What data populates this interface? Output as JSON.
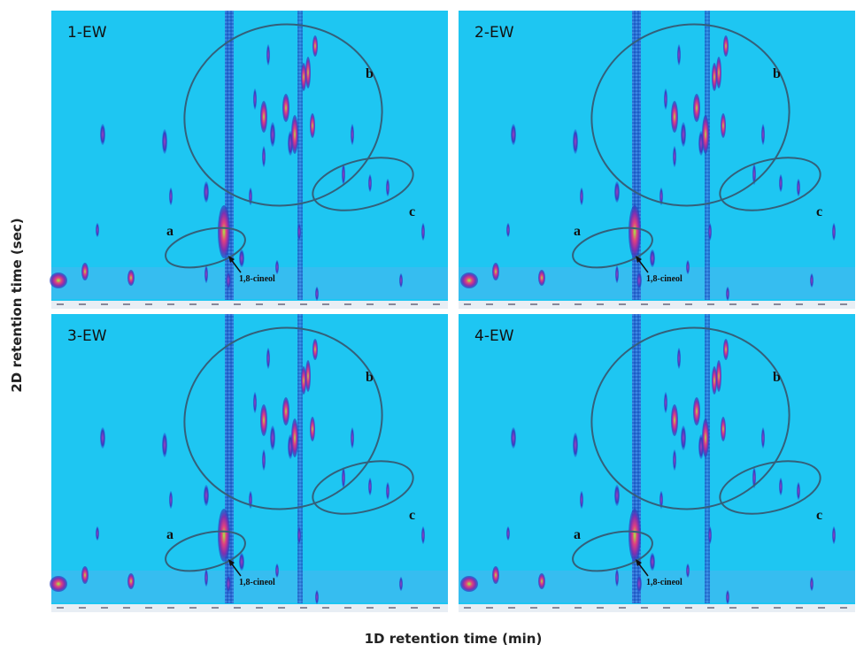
{
  "y_axis_label": "2D retention time (sec)",
  "x_axis_label": "1D retention time (min)",
  "panels": [
    {
      "title": "1-EW",
      "regions": [
        "a",
        "b",
        "c"
      ],
      "annotation": "1,8-cineol"
    },
    {
      "title": "2-EW",
      "regions": [
        "a",
        "b",
        "c"
      ],
      "annotation": "1,8-cineol"
    },
    {
      "title": "3-EW",
      "regions": [
        "a",
        "b",
        "c"
      ],
      "annotation": "1,8-cineol"
    },
    {
      "title": "4-EW",
      "regions": [
        "a",
        "b",
        "c"
      ],
      "annotation": "1,8-cineol"
    }
  ]
}
